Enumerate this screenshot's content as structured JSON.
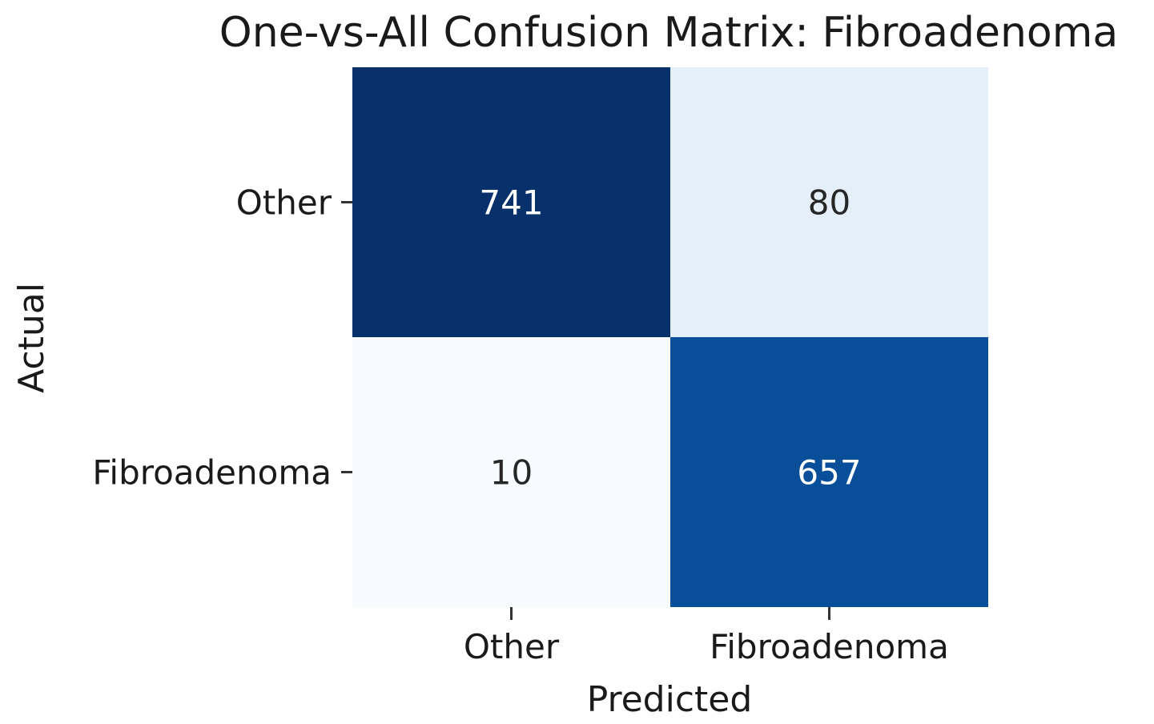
{
  "chart_data": {
    "type": "heatmap",
    "title": "One-vs-All Confusion Matrix: Fibroadenoma",
    "xlabel": "Predicted",
    "ylabel": "Actual",
    "x_categories": [
      "Other",
      "Fibroadenoma"
    ],
    "y_categories": [
      "Other",
      "Fibroadenoma"
    ],
    "values": [
      [
        741,
        80
      ],
      [
        10,
        657
      ]
    ],
    "colormap": "Blues",
    "colorbar": false
  },
  "colors": {
    "low": "#f7fbff",
    "high": "#08306b",
    "text_dark": "#262626",
    "text_light": "#ffffff"
  }
}
